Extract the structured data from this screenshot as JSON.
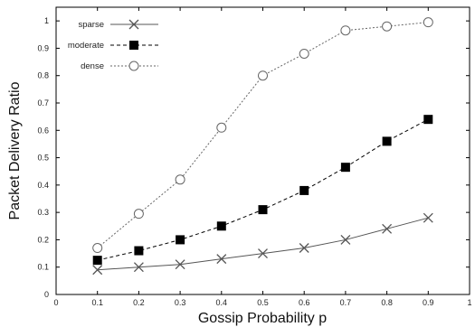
{
  "chart_data": {
    "type": "line",
    "title": "",
    "xlabel": "Gossip Probability p",
    "ylabel": "Packet Delivery Ratio",
    "xlim": [
      0,
      1
    ],
    "ylim": [
      0,
      1.05
    ],
    "xticks": [
      0,
      0.1,
      0.2,
      0.3,
      0.4,
      0.5,
      0.6,
      0.7,
      0.8,
      0.9,
      1
    ],
    "xtick_labels": [
      "0",
      "0.1",
      "0.2",
      "0.3",
      "0.4",
      "0.5",
      "0.6",
      "0.7",
      "0.8",
      "0.9",
      "1"
    ],
    "yticks": [
      0,
      0.1,
      0.2,
      0.3,
      0.4,
      0.5,
      0.6,
      0.7,
      0.8,
      0.9,
      1
    ],
    "ytick_labels": [
      "0",
      "0.1",
      "0.2",
      "0.3",
      "0.4",
      "0.5",
      "0.6",
      "0.7",
      "0.8",
      "0.9",
      "1"
    ],
    "grid": false,
    "legend_position": "top-left",
    "x": [
      0.1,
      0.2,
      0.3,
      0.4,
      0.5,
      0.6,
      0.7,
      0.8,
      0.9
    ],
    "series": [
      {
        "name": "sparse",
        "marker": "x",
        "line_style": "solid",
        "color": "#555555",
        "values": [
          0.09,
          0.1,
          0.11,
          0.13,
          0.15,
          0.17,
          0.2,
          0.24,
          0.28
        ]
      },
      {
        "name": "moderate",
        "marker": "filled-square",
        "line_style": "dashed",
        "color": "#000000",
        "values": [
          0.125,
          0.16,
          0.2,
          0.25,
          0.31,
          0.38,
          0.465,
          0.56,
          0.64
        ]
      },
      {
        "name": "dense",
        "marker": "open-circle",
        "line_style": "dotted",
        "color": "#666666",
        "values": [
          0.17,
          0.295,
          0.42,
          0.61,
          0.8,
          0.88,
          0.965,
          0.98,
          0.995
        ]
      }
    ]
  }
}
